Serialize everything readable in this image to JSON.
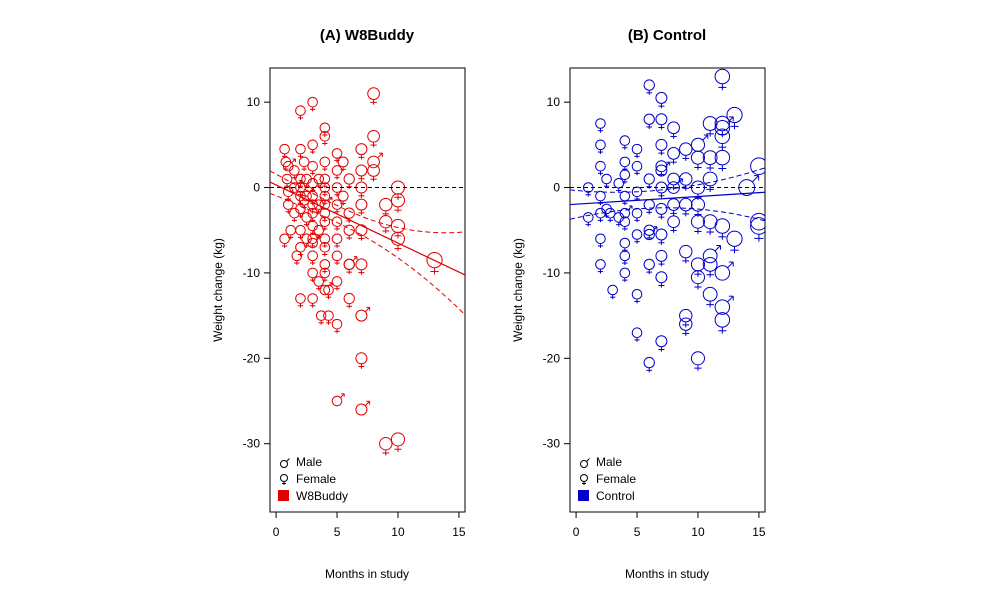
{
  "chart_data": [
    {
      "type": "scatter",
      "title": "(A) W8Buddy",
      "xlabel": "Months in study",
      "ylabel": "Weight change (kg)",
      "xlim": [
        -0.5,
        15.5
      ],
      "ylim": [
        -38,
        14
      ],
      "xticks": [
        0,
        5,
        10,
        15
      ],
      "yticks": [
        10,
        0,
        -10,
        -20,
        -30
      ],
      "color": "#e00000",
      "legend": {
        "position": "bottom-left",
        "entries": [
          "Male",
          "Female",
          "W8Buddy"
        ]
      },
      "reference_line_y": 0,
      "fit": {
        "intercept": 0.3,
        "slope": -0.68,
        "ci_start": [
          2.5,
          -1.9
        ],
        "ci_end": [
          -5.2,
          -14.9
        ]
      },
      "points": {
        "female": [
          [
            0.7,
            4.5
          ],
          [
            0.8,
            3
          ],
          [
            0.9,
            1
          ],
          [
            1,
            -0.5
          ],
          [
            1,
            -2
          ],
          [
            1.2,
            -5
          ],
          [
            0.7,
            -6
          ],
          [
            1.5,
            2
          ],
          [
            1.5,
            -3
          ],
          [
            1.7,
            -8
          ],
          [
            2,
            9
          ],
          [
            2,
            4.5
          ],
          [
            2,
            1
          ],
          [
            2,
            0
          ],
          [
            2,
            -1
          ],
          [
            2,
            -2.5
          ],
          [
            2,
            -5
          ],
          [
            2,
            -7
          ],
          [
            2,
            -13
          ],
          [
            2.3,
            3
          ],
          [
            2.3,
            -1.5
          ],
          [
            2.5,
            1
          ],
          [
            2.5,
            -3.5
          ],
          [
            2.5,
            -6
          ],
          [
            3,
            10
          ],
          [
            3,
            5
          ],
          [
            3,
            2.5
          ],
          [
            3,
            0.5
          ],
          [
            3,
            -1
          ],
          [
            3,
            -2
          ],
          [
            3,
            -3
          ],
          [
            3,
            -4.5
          ],
          [
            3,
            -6
          ],
          [
            3,
            -8
          ],
          [
            3,
            -10
          ],
          [
            3,
            -13
          ],
          [
            3.5,
            1
          ],
          [
            3.5,
            -2
          ],
          [
            3.5,
            -5
          ],
          [
            3.5,
            -11
          ],
          [
            3.7,
            -15
          ],
          [
            4,
            7
          ],
          [
            4,
            6
          ],
          [
            4,
            3
          ],
          [
            4,
            1
          ],
          [
            4,
            0
          ],
          [
            4,
            -1
          ],
          [
            4,
            -3
          ],
          [
            4,
            -4
          ],
          [
            4,
            -6
          ],
          [
            4,
            -7
          ],
          [
            4,
            -9
          ],
          [
            4,
            -10
          ],
          [
            4.3,
            -12
          ],
          [
            4.3,
            -15
          ],
          [
            5,
            4
          ],
          [
            5,
            2
          ],
          [
            5,
            0
          ],
          [
            5,
            -2
          ],
          [
            5,
            -4
          ],
          [
            5,
            -6
          ],
          [
            5,
            -8
          ],
          [
            5,
            -11
          ],
          [
            5,
            -16
          ],
          [
            5.5,
            3
          ],
          [
            5.5,
            -1
          ],
          [
            6,
            1
          ],
          [
            6,
            -3
          ],
          [
            6,
            -5
          ],
          [
            6,
            -9
          ],
          [
            6,
            -13
          ],
          [
            7,
            4.5
          ],
          [
            7,
            2
          ],
          [
            7,
            0
          ],
          [
            7,
            -2
          ],
          [
            7,
            -5
          ],
          [
            7,
            -9
          ],
          [
            7,
            -20
          ],
          [
            8,
            11
          ],
          [
            8,
            6
          ],
          [
            8,
            2
          ],
          [
            9,
            -2
          ],
          [
            9,
            -4
          ],
          [
            9,
            -30
          ],
          [
            10,
            0
          ],
          [
            10,
            -1.5
          ],
          [
            10,
            -4.5
          ],
          [
            10,
            -6
          ],
          [
            10,
            -29.5
          ],
          [
            13,
            -8.5
          ]
        ],
        "male": [
          [
            1,
            2.5
          ],
          [
            1.5,
            0
          ],
          [
            2.5,
            -1
          ],
          [
            3,
            -6.5
          ],
          [
            4,
            -2
          ],
          [
            4,
            -12
          ],
          [
            5,
            -25
          ],
          [
            6,
            -9
          ],
          [
            7,
            -15
          ],
          [
            7,
            -26
          ],
          [
            8,
            3
          ]
        ]
      }
    },
    {
      "type": "scatter",
      "title": "(B) Control",
      "xlabel": "Months in study",
      "ylabel": "Weight change (kg)",
      "xlim": [
        -0.5,
        15.5
      ],
      "ylim": [
        -38,
        14
      ],
      "xticks": [
        0,
        5,
        10,
        15
      ],
      "yticks": [
        10,
        0,
        -10,
        -20,
        -30
      ],
      "color": "#0000c8",
      "legend": {
        "position": "bottom-left",
        "entries": [
          "Male",
          "Female",
          "Control"
        ]
      },
      "reference_line_y": 0,
      "fit": {
        "intercept": -1.95,
        "slope": 0.09,
        "ci_start": [
          1.0,
          -5.0
        ],
        "ci_end": [
          2.3,
          -3.9
        ]
      },
      "points": {
        "female": [
          [
            1,
            0
          ],
          [
            1,
            -3.5
          ],
          [
            2,
            7.5
          ],
          [
            2,
            5
          ],
          [
            2,
            2.5
          ],
          [
            2,
            -1
          ],
          [
            2,
            -3
          ],
          [
            2,
            -6
          ],
          [
            2,
            -9
          ],
          [
            2.5,
            1
          ],
          [
            2.5,
            -2.5
          ],
          [
            2.8,
            -3
          ],
          [
            3,
            -12
          ],
          [
            3.5,
            0.5
          ],
          [
            3.5,
            -3.5
          ],
          [
            4,
            5.5
          ],
          [
            4,
            3
          ],
          [
            4,
            1.5
          ],
          [
            4,
            -1
          ],
          [
            4,
            -4
          ],
          [
            4,
            -6.5
          ],
          [
            4,
            -8
          ],
          [
            4,
            -10
          ],
          [
            5,
            4.5
          ],
          [
            5,
            2.5
          ],
          [
            5,
            -0.5
          ],
          [
            5,
            -3
          ],
          [
            5,
            -5.5
          ],
          [
            5,
            -12.5
          ],
          [
            5,
            -17
          ],
          [
            6,
            12
          ],
          [
            6,
            8
          ],
          [
            6,
            1
          ],
          [
            6,
            -2
          ],
          [
            6,
            -5
          ],
          [
            6,
            -9
          ],
          [
            6,
            -20.5
          ],
          [
            7,
            10.5
          ],
          [
            7,
            8
          ],
          [
            7,
            5
          ],
          [
            7,
            2.5
          ],
          [
            7,
            0
          ],
          [
            7,
            -2.5
          ],
          [
            7,
            -5.5
          ],
          [
            7,
            -8
          ],
          [
            7,
            -10.5
          ],
          [
            7,
            -18
          ],
          [
            8,
            7
          ],
          [
            8,
            4
          ],
          [
            8,
            1
          ],
          [
            8,
            -2
          ],
          [
            8,
            -4
          ],
          [
            9,
            4.5
          ],
          [
            9,
            1
          ],
          [
            9,
            -2
          ],
          [
            9,
            -7.5
          ],
          [
            9,
            -15
          ],
          [
            9,
            -16
          ],
          [
            10,
            3.5
          ],
          [
            10,
            0
          ],
          [
            10,
            -2
          ],
          [
            10,
            -4
          ],
          [
            10,
            -9
          ],
          [
            10,
            -10.5
          ],
          [
            10,
            -20
          ],
          [
            11,
            7.5
          ],
          [
            11,
            3.5
          ],
          [
            11,
            1
          ],
          [
            11,
            -4
          ],
          [
            11,
            -9
          ],
          [
            11,
            -12.5
          ],
          [
            12,
            13
          ],
          [
            12,
            7.5
          ],
          [
            12,
            6
          ],
          [
            12,
            3.5
          ],
          [
            12,
            -4.5
          ],
          [
            12,
            -15.5
          ],
          [
            13,
            8.5
          ],
          [
            13,
            -6
          ],
          [
            15,
            -4.5
          ]
        ],
        "male": [
          [
            4,
            -3
          ],
          [
            6,
            -5.5
          ],
          [
            7,
            2
          ],
          [
            8,
            0
          ],
          [
            10,
            5
          ],
          [
            11,
            -8
          ],
          [
            12,
            7
          ],
          [
            12,
            -10
          ],
          [
            12,
            -14
          ],
          [
            14,
            0
          ],
          [
            15,
            2.5
          ],
          [
            15,
            -4
          ]
        ]
      }
    }
  ]
}
